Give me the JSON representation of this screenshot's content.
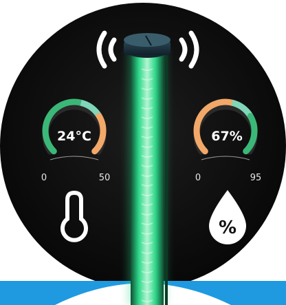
{
  "colors": {
    "background": "#ffffff",
    "disc": "#111111",
    "tube_glow": "#2fd88a",
    "tube_core": "#9ff0c6",
    "gauge_green": "#3bb878",
    "gauge_orange": "#f2a868",
    "gauge_teal": "#7fd6b8",
    "band_blue": "#1f9ae0"
  },
  "temperature": {
    "value_label": "24°C",
    "min_label": "0",
    "max_label": "50",
    "value": 24,
    "min": 0,
    "max": 50,
    "icon": "thermometer-icon"
  },
  "humidity": {
    "value_label": "67%",
    "min_label": "0",
    "max_label": "95",
    "value": 67,
    "min": 0,
    "max": 95,
    "icon": "humidity-drop-icon",
    "icon_text": "%"
  },
  "signal": {
    "icon": "wireless-signal-icon"
  },
  "device": {
    "icon": "sensor-tube-icon"
  }
}
